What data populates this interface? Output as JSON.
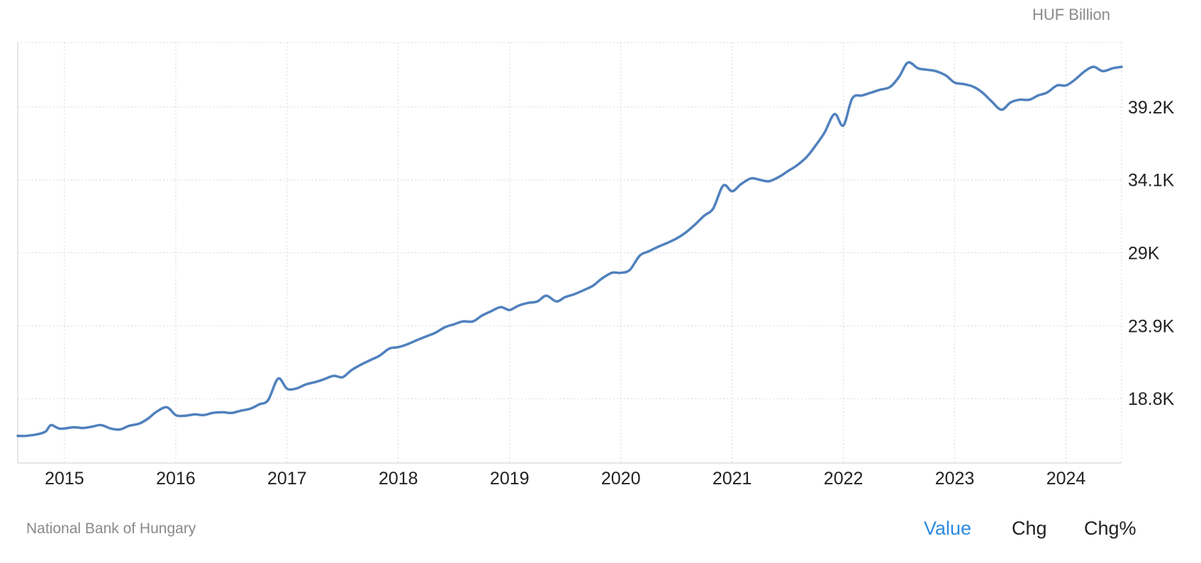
{
  "colors": {
    "line": "#5081bd",
    "grid": "#d9d9d9",
    "accent": "#2b8ae0",
    "muted": "#8a8a8a"
  },
  "unit_label": "HUF Billion",
  "source": "National Bank of Hungary",
  "toggles": [
    {
      "label": "Value",
      "active": true
    },
    {
      "label": "Chg",
      "active": false
    },
    {
      "label": "Chg%",
      "active": false
    }
  ],
  "chart_data": {
    "type": "line",
    "x_ticks": [
      "2015",
      "2016",
      "2017",
      "2018",
      "2019",
      "2020",
      "2021",
      "2022",
      "2023",
      "2024"
    ],
    "y_ticks": [
      {
        "value": 18800,
        "label": "18.8K"
      },
      {
        "value": 23900,
        "label": "23.9K"
      },
      {
        "value": 29000,
        "label": "29K"
      },
      {
        "value": 34100,
        "label": "34.1K"
      },
      {
        "value": 39200,
        "label": "39.2K"
      }
    ],
    "xlim": [
      2014.58,
      2024.5
    ],
    "ylim": [
      14300,
      43700
    ],
    "grid": true,
    "series": [
      {
        "x": [
          2014.58,
          2014.65,
          2014.75,
          2014.83,
          2014.88,
          2014.96,
          2015.08,
          2015.17,
          2015.25,
          2015.33,
          2015.42,
          2015.5,
          2015.58,
          2015.67,
          2015.75,
          2015.83,
          2015.92,
          2016.0,
          2016.08,
          2016.17,
          2016.25,
          2016.33,
          2016.42,
          2016.5,
          2016.58,
          2016.67,
          2016.75,
          2016.83,
          2016.92,
          2017.0,
          2017.08,
          2017.17,
          2017.25,
          2017.33,
          2017.42,
          2017.5,
          2017.58,
          2017.67,
          2017.75,
          2017.83,
          2017.92,
          2018.0,
          2018.08,
          2018.17,
          2018.25,
          2018.33,
          2018.42,
          2018.5,
          2018.58,
          2018.67,
          2018.75,
          2018.83,
          2018.92,
          2019.0,
          2019.08,
          2019.17,
          2019.25,
          2019.33,
          2019.42,
          2019.5,
          2019.58,
          2019.67,
          2019.75,
          2019.83,
          2019.92,
          2020.0,
          2020.08,
          2020.17,
          2020.25,
          2020.33,
          2020.42,
          2020.5,
          2020.58,
          2020.67,
          2020.75,
          2020.83,
          2020.92,
          2021.0,
          2021.08,
          2021.17,
          2021.25,
          2021.33,
          2021.42,
          2021.5,
          2021.58,
          2021.67,
          2021.75,
          2021.83,
          2021.92,
          2022.0,
          2022.08,
          2022.17,
          2022.25,
          2022.33,
          2022.42,
          2022.5,
          2022.58,
          2022.67,
          2022.75,
          2022.83,
          2022.92,
          2023.0,
          2023.08,
          2023.17,
          2023.25,
          2023.33,
          2023.42,
          2023.5,
          2023.58,
          2023.67,
          2023.75,
          2023.83,
          2023.92,
          2024.0,
          2024.08,
          2024.17,
          2024.25,
          2024.33,
          2024.42,
          2024.5
        ],
        "y": [
          16200,
          16200,
          16300,
          16500,
          16950,
          16700,
          16800,
          16750,
          16850,
          16950,
          16700,
          16650,
          16900,
          17050,
          17400,
          17900,
          18200,
          17650,
          17600,
          17700,
          17650,
          17800,
          17850,
          17800,
          17950,
          18100,
          18400,
          18700,
          20200,
          19500,
          19500,
          19800,
          19950,
          20150,
          20400,
          20300,
          20800,
          21200,
          21500,
          21800,
          22300,
          22400,
          22600,
          22900,
          23150,
          23400,
          23800,
          24000,
          24200,
          24200,
          24600,
          24900,
          25200,
          25000,
          25300,
          25500,
          25600,
          26000,
          25600,
          25900,
          26100,
          26400,
          26700,
          27200,
          27600,
          27600,
          27800,
          28800,
          29100,
          29400,
          29700,
          30000,
          30400,
          31000,
          31600,
          32100,
          33700,
          33300,
          33800,
          34200,
          34100,
          34000,
          34300,
          34700,
          35100,
          35700,
          36500,
          37400,
          38700,
          37900,
          39800,
          40000,
          40200,
          40400,
          40600,
          41300,
          42300,
          41900,
          41800,
          41700,
          41400,
          40900,
          40800,
          40600,
          40200,
          39600,
          39000,
          39500,
          39700,
          39700,
          40000,
          40200,
          40700,
          40700,
          41100,
          41700,
          42000,
          41700,
          41900,
          42000
        ]
      }
    ]
  }
}
